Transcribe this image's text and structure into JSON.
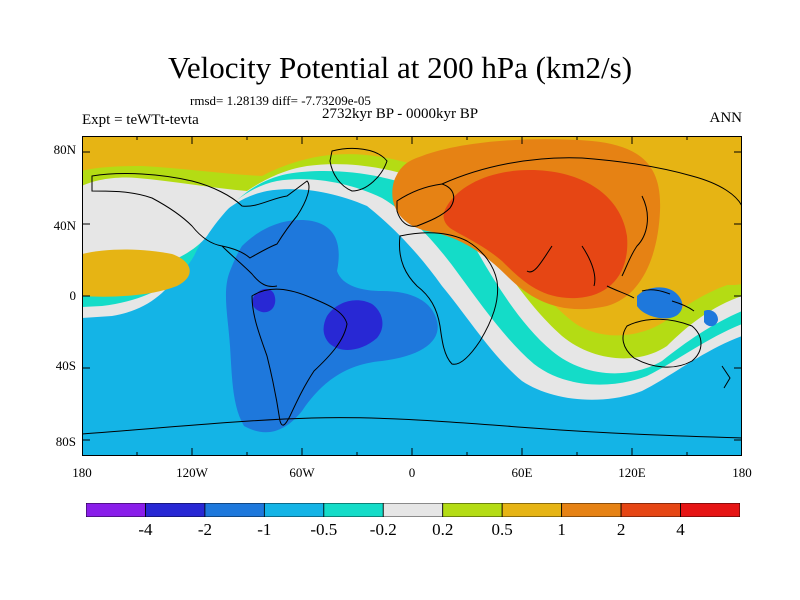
{
  "title": "Velocity Potential at 200 hPa (km2/s)",
  "stats": "rmsd= 1.28139 diff= -7.73209e-05",
  "experiment": "Expt = teWTt-tevta",
  "period": "2732kyr BP - 0000kyr BP",
  "season": "ANN",
  "lat_labels": [
    "80N",
    "40N",
    "0",
    "40S",
    "80S"
  ],
  "lon_labels": [
    "180",
    "120W",
    "60W",
    "0",
    "60E",
    "120E",
    "180"
  ],
  "colorbar": {
    "labels": [
      "-4",
      "-2",
      "-1",
      "-0.5",
      "-0.2",
      "0.2",
      "0.5",
      "1",
      "2",
      "4"
    ],
    "colors": [
      "#8a1eea",
      "#2828d4",
      "#1e78dc",
      "#14b4e6",
      "#14dcc8",
      "#e6e6e6",
      "#b4dc14",
      "#e6b414",
      "#e68214",
      "#e64614",
      "#e61414"
    ]
  },
  "colors": {
    "cyan": "#14b4e6",
    "blue": "#1e78dc",
    "dark_blue": "#2828d4",
    "teal": "#14dcc8",
    "white": "#e6e6e6",
    "lime": "#b4dc14",
    "yellow": "#e6b414",
    "orange": "#e68214",
    "red_orange": "#e64614",
    "coast": "#000000"
  }
}
